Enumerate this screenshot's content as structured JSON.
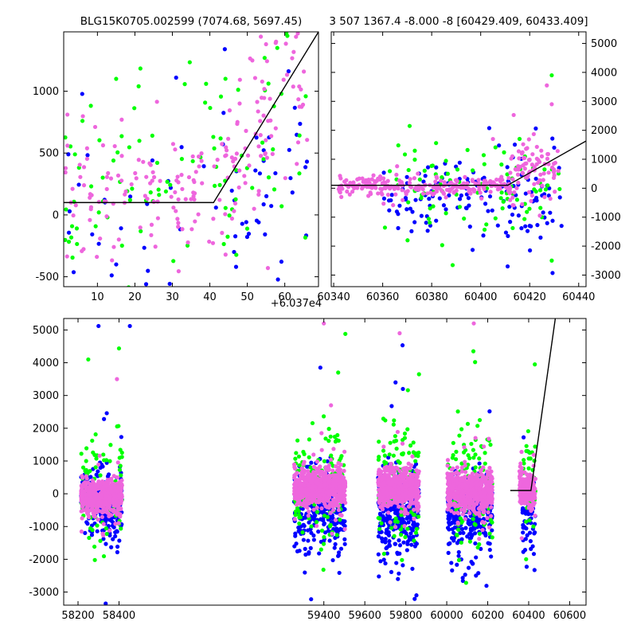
{
  "colors": {
    "blue": "#0000ff",
    "green": "#00ff00",
    "pink": "#ee66dd",
    "model": "#000000"
  },
  "chart_data": [
    {
      "id": "zoom",
      "type": "scatter",
      "title": "BLG15K0705.002599 (7074.68, 5697.45)",
      "xlim": [
        1,
        69
      ],
      "ylim": [
        -580,
        1480
      ],
      "x_offset_label": "+6.037e4",
      "xticks": [
        10,
        20,
        30,
        40,
        50,
        60
      ],
      "yticks": [
        -500,
        0,
        500,
        1000
      ],
      "ytick_side": "left",
      "model_line": [
        [
          1,
          100
        ],
        [
          41,
          100
        ],
        [
          69,
          1480
        ]
      ],
      "series": [
        {
          "color": "blue",
          "seed": 11,
          "segments": [
            {
              "x0": 1,
              "x1": 40,
              "n": 25,
              "y_mu": 100,
              "y_sd": 350
            },
            {
              "x0": 40,
              "x1": 66,
              "n": 40,
              "y_mu": 300,
              "y_sd": 400
            }
          ],
          "points": [
            [
              31,
              1110
            ],
            [
              44,
              1340
            ],
            [
              47,
              -420
            ],
            [
              23,
              -560
            ]
          ]
        },
        {
          "color": "green",
          "seed": 22,
          "segments": [
            {
              "x0": 1,
              "x1": 40,
              "n": 55,
              "y_mu": 150,
              "y_sd": 380
            },
            {
              "x0": 40,
              "x1": 66,
              "n": 45,
              "y_mu": 450,
              "y_sd": 450
            }
          ],
          "points": [
            [
              15,
              1100
            ],
            [
              21,
              1040
            ],
            [
              39,
              1060
            ],
            [
              58,
              1350
            ],
            [
              6,
              760
            ]
          ]
        },
        {
          "color": "pink",
          "seed": 33,
          "segments": [
            {
              "x0": 1,
              "x1": 40,
              "n": 110,
              "y_mu": 170,
              "y_sd": 260
            },
            {
              "x0": 40,
              "x1": 48,
              "n": 30,
              "y_mu": 320,
              "y_sd": 300
            },
            {
              "x0": 48,
              "x1": 66,
              "n": 60,
              "y_mu": 850,
              "y_sd": 380
            }
          ],
          "points": [
            [
              63,
              1440
            ],
            [
              55,
              1380
            ],
            [
              2,
              560
            ]
          ]
        }
      ]
    },
    {
      "id": "recent",
      "type": "scatter",
      "title": "3 507 1367.4 -8.000 -8 [60429.409, 60433.409]",
      "xlim": [
        60339,
        60443
      ],
      "ylim": [
        -3400,
        5400
      ],
      "xticks": [
        60340,
        60360,
        60380,
        60400,
        60420,
        60440
      ],
      "yticks": [
        -3000,
        -2000,
        -1000,
        0,
        1000,
        2000,
        3000,
        4000,
        5000
      ],
      "ytick_side": "right",
      "model_line": [
        [
          60339,
          100
        ],
        [
          60411,
          100
        ],
        [
          60443,
          1630
        ]
      ],
      "series": [
        {
          "color": "blue",
          "seed": 44,
          "segments": [
            {
              "x0": 60360,
              "x1": 60433,
              "n": 140,
              "y_mu": -350,
              "y_sd": 700
            }
          ],
          "points": [
            [
              60411,
              -2700
            ],
            [
              60420,
              -1300
            ],
            [
              60430,
              1400
            ],
            [
              60432,
              700
            ]
          ]
        },
        {
          "color": "green",
          "seed": 55,
          "segments": [
            {
              "x0": 60360,
              "x1": 60433,
              "n": 90,
              "y_mu": 150,
              "y_sd": 750
            }
          ],
          "points": [
            [
              60429,
              3900
            ],
            [
              60371,
              2150
            ],
            [
              60429,
              -2500
            ],
            [
              60425,
              -1000
            ]
          ]
        },
        {
          "color": "pink",
          "seed": 66,
          "segments": [
            {
              "x0": 60342,
              "x1": 60412,
              "n": 230,
              "y_mu": 80,
              "y_sd": 160
            },
            {
              "x0": 60412,
              "x1": 60432,
              "n": 90,
              "y_mu": 650,
              "y_sd": 550
            }
          ],
          "points": [
            [
              60427,
              3550
            ],
            [
              60429,
              2900
            ],
            [
              60405,
              1700
            ]
          ]
        }
      ]
    },
    {
      "id": "full",
      "type": "scatter",
      "title": "",
      "xlim": [
        58130,
        60680
      ],
      "ylim": [
        -3400,
        5350
      ],
      "xticks": [
        58200,
        58400,
        59400,
        59600,
        59800,
        60000,
        60200,
        60400,
        60600
      ],
      "yticks": [
        -3000,
        -2000,
        -1000,
        0,
        1000,
        2000,
        3000,
        4000,
        5000
      ],
      "ytick_side": "left",
      "model_line": [
        [
          60310,
          100
        ],
        [
          60411,
          100
        ],
        [
          60530,
          5350
        ]
      ],
      "series": [
        {
          "color": "blue",
          "seed": 77,
          "segments": [
            {
              "x0": 58215,
              "x1": 58415,
              "n": 220,
              "y_mu": -300,
              "y_sd": 550
            },
            {
              "x0": 59255,
              "x1": 59505,
              "n": 300,
              "y_mu": -500,
              "y_sd": 550
            },
            {
              "x0": 59665,
              "x1": 59865,
              "n": 320,
              "y_mu": -600,
              "y_sd": 620
            },
            {
              "x0": 60003,
              "x1": 60223,
              "n": 300,
              "y_mu": -550,
              "y_sd": 600
            },
            {
              "x0": 60370,
              "x1": 60433,
              "n": 80,
              "y_mu": -500,
              "y_sd": 700
            }
          ],
          "points": [
            [
              58300,
              5120
            ],
            [
              58453,
              5120
            ],
            [
              59383,
              3850
            ],
            [
              59786,
              3200
            ],
            [
              59750,
              3400
            ],
            [
              59852,
              -3100
            ],
            [
              58335,
              -3350
            ]
          ]
        },
        {
          "color": "green",
          "seed": 88,
          "segments": [
            {
              "x0": 58215,
              "x1": 58415,
              "n": 90,
              "y_mu": 300,
              "y_sd": 900
            },
            {
              "x0": 59255,
              "x1": 59505,
              "n": 130,
              "y_mu": 300,
              "y_sd": 900
            },
            {
              "x0": 59665,
              "x1": 59865,
              "n": 130,
              "y_mu": 300,
              "y_sd": 950
            },
            {
              "x0": 60003,
              "x1": 60223,
              "n": 130,
              "y_mu": 300,
              "y_sd": 900
            },
            {
              "x0": 60370,
              "x1": 60433,
              "n": 40,
              "y_mu": 200,
              "y_sd": 800
            }
          ],
          "points": [
            [
              58250,
              4100
            ],
            [
              59505,
              4880
            ],
            [
              59470,
              3700
            ],
            [
              60130,
              4350
            ],
            [
              60430,
              3950
            ]
          ]
        },
        {
          "color": "pink",
          "seed": 99,
          "segments": [
            {
              "x0": 58215,
              "x1": 58415,
              "n": 520,
              "y_mu": -100,
              "y_sd": 260
            },
            {
              "x0": 59255,
              "x1": 59505,
              "n": 640,
              "y_mu": 200,
              "y_sd": 280
            },
            {
              "x0": 59665,
              "x1": 59865,
              "n": 560,
              "y_mu": 150,
              "y_sd": 280
            },
            {
              "x0": 60003,
              "x1": 60223,
              "n": 620,
              "y_mu": 100,
              "y_sd": 280
            },
            {
              "x0": 60355,
              "x1": 60433,
              "n": 170,
              "y_mu": 150,
              "y_sd": 260
            }
          ],
          "points": [
            [
              59400,
              5200
            ],
            [
              59770,
              4900
            ],
            [
              60132,
              5200
            ],
            [
              59435,
              2700
            ],
            [
              58390,
              3500
            ]
          ]
        }
      ]
    }
  ]
}
